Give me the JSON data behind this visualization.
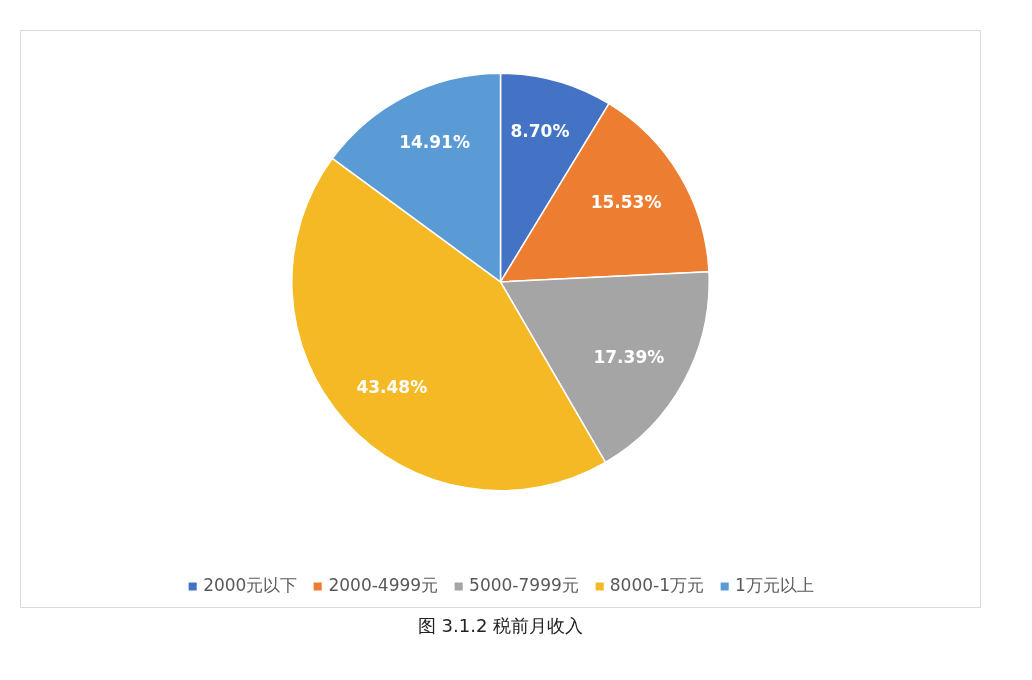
{
  "chart_data": {
    "type": "pie",
    "categories": [
      "2000元以下",
      "2000-4999元",
      "5000-7999元",
      "8000-1万元",
      "1万元以上"
    ],
    "values": [
      8.7,
      15.53,
      17.39,
      43.48,
      14.91
    ],
    "colors": [
      "#4472c4",
      "#ed7d31",
      "#a5a5a5",
      "#f4b924",
      "#5b9bd5"
    ],
    "value_labels": [
      "8.70%",
      "15.53%",
      "17.39%",
      "43.48%",
      "14.91%"
    ],
    "legend": "bottom",
    "annotations": [
      "图 3.1.2 税前月收入"
    ]
  }
}
